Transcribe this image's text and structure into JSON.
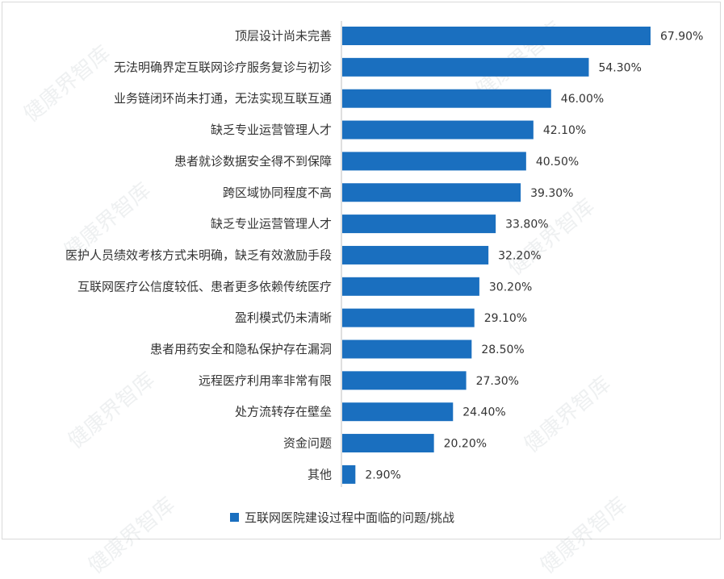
{
  "chart_data": {
    "type": "bar",
    "orientation": "horizontal",
    "categories": [
      "顶层设计尚未完善",
      "无法明确界定互联网诊疗服务复诊与初诊",
      "业务链闭环尚未打通，无法实现互联互通",
      "缺乏专业运营管理人才",
      "患者就诊数据安全得不到保障",
      "跨区域协同程度不高",
      "缺乏专业运营管理人才",
      "医护人员绩效考核方式未明确，缺乏有效激励手段",
      "互联网医疗公信度较低、患者更多依赖传统医疗",
      "盈利模式仍未清晰",
      "患者用药安全和隐私保护存在漏洞",
      "远程医疗利用率非常有限",
      "处方流转存在壁垒",
      "资金问题",
      "其他"
    ],
    "values": [
      67.9,
      54.3,
      46.0,
      42.1,
      40.5,
      39.3,
      33.8,
      32.2,
      30.2,
      29.1,
      28.5,
      27.3,
      24.4,
      20.2,
      2.9
    ],
    "value_labels": [
      "67.90%",
      "54.30%",
      "46.00%",
      "42.10%",
      "40.50%",
      "39.30%",
      "33.80%",
      "32.20%",
      "30.20%",
      "29.10%",
      "28.50%",
      "27.30%",
      "24.40%",
      "20.20%",
      "2.90%"
    ],
    "series": [
      {
        "name": "互联网医院建设过程中面临的问题/挑战"
      }
    ],
    "xlim": [
      0,
      70
    ],
    "grid": false,
    "legend_position": "bottom",
    "bar_color": "#1a6fbf"
  },
  "watermark": "健康界智库"
}
